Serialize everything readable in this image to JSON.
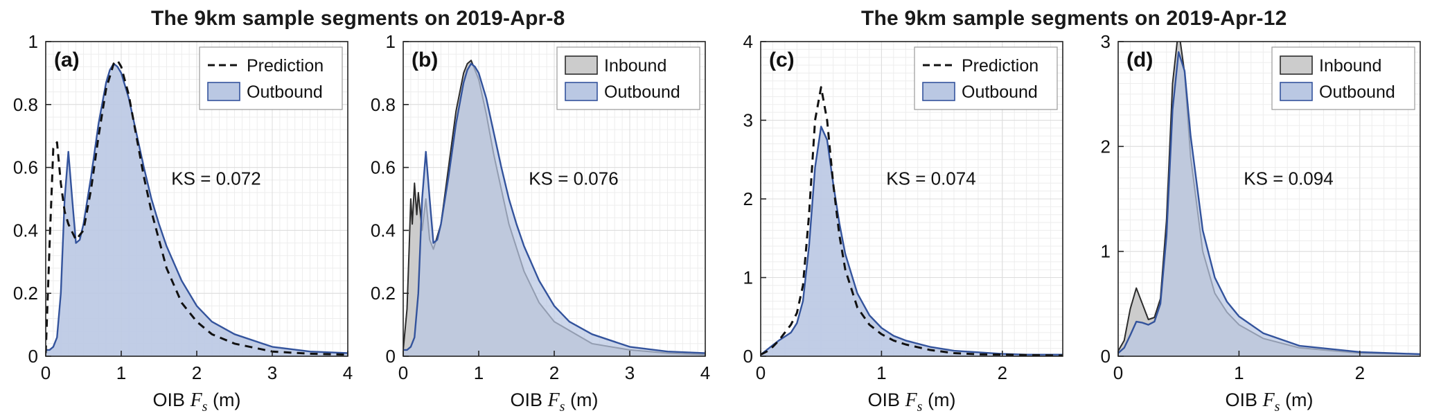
{
  "figure": {
    "titles": [
      "The 9km sample segments on 2019-Apr-8",
      "The 9km sample segments on 2019-Apr-12"
    ]
  },
  "colors": {
    "outbound_fill": "#bac8e3",
    "outbound_edge": "#33539c",
    "inbound_fill": "#cccccc",
    "inbound_edge": "#2b2b2b",
    "prediction_line": "#111111",
    "grid_major": "#dcdcdc",
    "grid_minor": "#ededed",
    "axis": "#222222",
    "legend_border": "#999999",
    "legend_bg": "#ffffff"
  },
  "chart_data": [
    {
      "type": "area",
      "panel_label": "(a)",
      "ks_text": "KS = 0.072",
      "xlabel": {
        "pre": "OIB ",
        "var": "F",
        "sub": "s",
        "post": " (m)"
      },
      "xlim": [
        0,
        4
      ],
      "ylim": [
        0,
        1
      ],
      "xticks": [
        0,
        1,
        2,
        3,
        4
      ],
      "xtick_labels": [
        "0",
        "1",
        "2",
        "3",
        "4"
      ],
      "yticks": [
        0,
        0.2,
        0.4,
        0.6,
        0.8,
        1
      ],
      "ytick_labels": [
        "0",
        "0.2",
        "0.4",
        "0.6",
        "0.8",
        "1"
      ],
      "grid": true,
      "minor_x": 0.1,
      "minor_y": 0.04,
      "legend_position": "top-right",
      "legend": [
        {
          "label": "Prediction",
          "swatch": "dashed-line"
        },
        {
          "label": "Outbound",
          "swatch": "patch-outbound"
        }
      ],
      "series": [
        {
          "name": "Outbound",
          "kind": "area",
          "fill": "#bac8e3",
          "fill_opacity": 0.9,
          "edge": "#33539c",
          "edge_width": 2.4,
          "x": [
            0,
            0.05,
            0.1,
            0.15,
            0.2,
            0.25,
            0.3,
            0.35,
            0.4,
            0.45,
            0.5,
            0.6,
            0.7,
            0.8,
            0.85,
            0.9,
            0.95,
            1.0,
            1.1,
            1.2,
            1.3,
            1.4,
            1.5,
            1.6,
            1.8,
            2.0,
            2.2,
            2.5,
            3.0,
            3.5,
            4.0
          ],
          "y": [
            0.02,
            0.02,
            0.03,
            0.06,
            0.2,
            0.5,
            0.65,
            0.5,
            0.36,
            0.37,
            0.42,
            0.57,
            0.74,
            0.87,
            0.91,
            0.93,
            0.92,
            0.9,
            0.82,
            0.71,
            0.6,
            0.5,
            0.42,
            0.35,
            0.24,
            0.16,
            0.11,
            0.07,
            0.03,
            0.015,
            0.01
          ]
        },
        {
          "name": "Prediction",
          "kind": "dashed-line",
          "edge": "#111111",
          "edge_width": 3,
          "x": [
            0,
            0.05,
            0.1,
            0.15,
            0.2,
            0.25,
            0.3,
            0.4,
            0.5,
            0.6,
            0.7,
            0.8,
            0.9,
            0.95,
            1.0,
            1.1,
            1.2,
            1.3,
            1.4,
            1.6,
            1.8,
            2.0,
            2.2,
            2.5,
            3.0,
            3.5,
            4.0
          ],
          "y": [
            0.01,
            0.35,
            0.66,
            0.68,
            0.55,
            0.46,
            0.42,
            0.37,
            0.4,
            0.53,
            0.7,
            0.85,
            0.93,
            0.94,
            0.92,
            0.83,
            0.7,
            0.57,
            0.46,
            0.28,
            0.17,
            0.11,
            0.07,
            0.04,
            0.015,
            0.008,
            0.005
          ]
        }
      ]
    },
    {
      "type": "area",
      "panel_label": "(b)",
      "ks_text": "KS = 0.076",
      "xlabel": {
        "pre": "OIB ",
        "var": "F",
        "sub": "s",
        "post": " (m)"
      },
      "xlim": [
        0,
        4
      ],
      "ylim": [
        0,
        1
      ],
      "xticks": [
        0,
        1,
        2,
        3,
        4
      ],
      "xtick_labels": [
        "0",
        "1",
        "2",
        "3",
        "4"
      ],
      "yticks": [
        0,
        0.2,
        0.4,
        0.6,
        0.8,
        1
      ],
      "ytick_labels": [
        "0",
        "0.2",
        "0.4",
        "0.6",
        "0.8",
        "1"
      ],
      "grid": true,
      "minor_x": 0.1,
      "minor_y": 0.04,
      "legend_position": "top-right",
      "legend": [
        {
          "label": "Inbound",
          "swatch": "patch-inbound"
        },
        {
          "label": "Outbound",
          "swatch": "patch-outbound"
        }
      ],
      "series": [
        {
          "name": "Inbound",
          "kind": "area",
          "fill": "#cccccc",
          "fill_opacity": 1,
          "edge": "#2b2b2b",
          "edge_width": 2,
          "x": [
            0,
            0.05,
            0.08,
            0.1,
            0.12,
            0.15,
            0.18,
            0.2,
            0.25,
            0.3,
            0.35,
            0.4,
            0.5,
            0.6,
            0.7,
            0.8,
            0.85,
            0.9,
            1.0,
            1.1,
            1.2,
            1.4,
            1.6,
            1.8,
            2.0,
            2.5,
            3.0,
            3.5,
            4.0
          ],
          "y": [
            0.02,
            0.15,
            0.35,
            0.5,
            0.42,
            0.55,
            0.45,
            0.52,
            0.4,
            0.5,
            0.37,
            0.34,
            0.42,
            0.6,
            0.78,
            0.9,
            0.93,
            0.94,
            0.88,
            0.77,
            0.64,
            0.42,
            0.27,
            0.17,
            0.11,
            0.04,
            0.02,
            0.01,
            0.005
          ]
        },
        {
          "name": "Outbound",
          "kind": "area",
          "fill": "#bac8e3",
          "fill_opacity": 0.72,
          "edge": "#33539c",
          "edge_width": 2.4,
          "x": [
            0,
            0.05,
            0.1,
            0.15,
            0.2,
            0.25,
            0.3,
            0.35,
            0.4,
            0.45,
            0.5,
            0.6,
            0.7,
            0.8,
            0.85,
            0.9,
            0.95,
            1.0,
            1.1,
            1.2,
            1.3,
            1.4,
            1.5,
            1.6,
            1.8,
            2.0,
            2.2,
            2.5,
            3.0,
            3.5,
            4.0
          ],
          "y": [
            0.02,
            0.02,
            0.03,
            0.06,
            0.2,
            0.5,
            0.65,
            0.5,
            0.36,
            0.37,
            0.42,
            0.57,
            0.74,
            0.87,
            0.91,
            0.93,
            0.92,
            0.9,
            0.82,
            0.71,
            0.6,
            0.5,
            0.42,
            0.35,
            0.24,
            0.16,
            0.11,
            0.07,
            0.03,
            0.015,
            0.01
          ]
        }
      ]
    },
    {
      "type": "area",
      "panel_label": "(c)",
      "ks_text": "KS = 0.074",
      "xlabel": {
        "pre": "OIB ",
        "var": "F",
        "sub": "s",
        "post": " (m)"
      },
      "xlim": [
        0,
        2.5
      ],
      "ylim": [
        0,
        4
      ],
      "xticks": [
        0,
        1,
        2
      ],
      "xtick_labels": [
        "0",
        "1",
        "2"
      ],
      "yticks": [
        0,
        1,
        2,
        3,
        4
      ],
      "ytick_labels": [
        "0",
        "1",
        "2",
        "3",
        "4"
      ],
      "grid": true,
      "minor_x": 0.1,
      "minor_y": 0.1,
      "legend_position": "top-right",
      "legend": [
        {
          "label": "Prediction",
          "swatch": "dashed-line"
        },
        {
          "label": "Outbound",
          "swatch": "patch-outbound"
        }
      ],
      "series": [
        {
          "name": "Outbound",
          "kind": "area",
          "fill": "#bac8e3",
          "fill_opacity": 0.9,
          "edge": "#33539c",
          "edge_width": 2.4,
          "x": [
            0,
            0.05,
            0.1,
            0.15,
            0.2,
            0.25,
            0.3,
            0.35,
            0.4,
            0.45,
            0.5,
            0.55,
            0.6,
            0.65,
            0.7,
            0.8,
            0.9,
            1.0,
            1.1,
            1.2,
            1.4,
            1.6,
            1.8,
            2.0,
            2.2,
            2.5
          ],
          "y": [
            0.02,
            0.08,
            0.14,
            0.2,
            0.25,
            0.3,
            0.42,
            0.7,
            1.4,
            2.4,
            2.92,
            2.75,
            2.2,
            1.7,
            1.3,
            0.8,
            0.52,
            0.36,
            0.26,
            0.2,
            0.12,
            0.07,
            0.05,
            0.03,
            0.02,
            0.02
          ]
        },
        {
          "name": "Prediction",
          "kind": "dashed-line",
          "edge": "#111111",
          "edge_width": 3,
          "x": [
            0,
            0.05,
            0.1,
            0.15,
            0.2,
            0.25,
            0.3,
            0.35,
            0.4,
            0.45,
            0.5,
            0.55,
            0.6,
            0.65,
            0.7,
            0.8,
            0.9,
            1.0,
            1.1,
            1.2,
            1.4,
            1.6,
            1.8,
            2.0,
            2.2,
            2.5
          ],
          "y": [
            0.02,
            0.06,
            0.12,
            0.2,
            0.3,
            0.4,
            0.55,
            0.9,
            1.8,
            3.0,
            3.42,
            3.0,
            2.2,
            1.55,
            1.1,
            0.62,
            0.4,
            0.28,
            0.2,
            0.15,
            0.08,
            0.04,
            0.025,
            0.02,
            0.015,
            0.01
          ]
        }
      ]
    },
    {
      "type": "area",
      "panel_label": "(d)",
      "ks_text": "KS = 0.094",
      "xlabel": {
        "pre": "OIB ",
        "var": "F",
        "sub": "s",
        "post": " (m)"
      },
      "xlim": [
        0,
        2.5
      ],
      "ylim": [
        0,
        3
      ],
      "xticks": [
        0,
        1,
        2
      ],
      "xtick_labels": [
        "0",
        "1",
        "2"
      ],
      "yticks": [
        0,
        1,
        2,
        3
      ],
      "ytick_labels": [
        "0",
        "1",
        "2",
        "3"
      ],
      "grid": true,
      "minor_x": 0.1,
      "minor_y": 0.1,
      "legend_position": "top-right",
      "legend": [
        {
          "label": "Inbound",
          "swatch": "patch-inbound"
        },
        {
          "label": "Outbound",
          "swatch": "patch-outbound"
        }
      ],
      "series": [
        {
          "name": "Inbound",
          "kind": "area",
          "fill": "#cccccc",
          "fill_opacity": 1,
          "edge": "#2b2b2b",
          "edge_width": 2,
          "x": [
            0,
            0.05,
            0.1,
            0.15,
            0.2,
            0.25,
            0.3,
            0.35,
            0.4,
            0.45,
            0.5,
            0.55,
            0.6,
            0.7,
            0.8,
            0.9,
            1.0,
            1.2,
            1.5,
            2.0,
            2.5
          ],
          "y": [
            0.05,
            0.15,
            0.45,
            0.65,
            0.5,
            0.35,
            0.37,
            0.55,
            1.3,
            2.6,
            3.12,
            2.7,
            1.9,
            1.0,
            0.6,
            0.42,
            0.3,
            0.17,
            0.08,
            0.03,
            0.02
          ]
        },
        {
          "name": "Outbound",
          "kind": "area",
          "fill": "#bac8e3",
          "fill_opacity": 0.72,
          "edge": "#33539c",
          "edge_width": 2.4,
          "x": [
            0,
            0.05,
            0.1,
            0.15,
            0.2,
            0.25,
            0.3,
            0.35,
            0.4,
            0.45,
            0.5,
            0.55,
            0.6,
            0.7,
            0.8,
            0.9,
            1.0,
            1.2,
            1.5,
            2.0,
            2.5
          ],
          "y": [
            0.03,
            0.08,
            0.2,
            0.33,
            0.32,
            0.3,
            0.33,
            0.5,
            1.15,
            2.35,
            2.9,
            2.72,
            2.1,
            1.2,
            0.75,
            0.52,
            0.38,
            0.22,
            0.1,
            0.04,
            0.02
          ]
        }
      ]
    }
  ]
}
